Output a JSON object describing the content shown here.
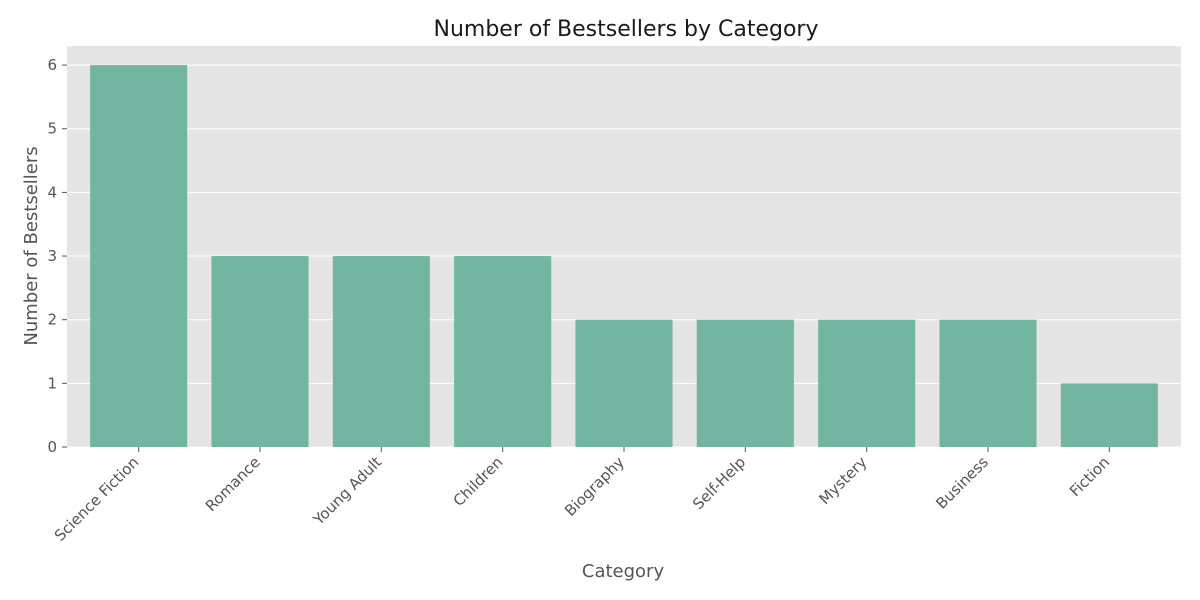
{
  "chart_data": {
    "type": "bar",
    "title": "Number of Bestsellers by Category",
    "xlabel": "Category",
    "ylabel": "Number of Bestsellers",
    "categories": [
      "Science Fiction",
      "Romance",
      "Young Adult",
      "Children",
      "Biography",
      "Self-Help",
      "Mystery",
      "Business",
      "Fiction"
    ],
    "values": [
      6,
      3,
      3,
      3,
      2,
      2,
      2,
      2,
      1
    ],
    "ylim": [
      0,
      6.3
    ],
    "yticks": [
      0,
      1,
      2,
      3,
      4,
      5,
      6
    ],
    "grid": true,
    "bar_color": "#72b5a0",
    "background_color": "#e5e5e5",
    "grid_color": "#ffffff"
  }
}
